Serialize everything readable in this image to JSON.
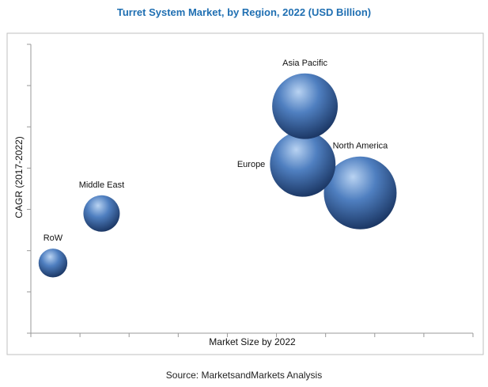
{
  "title": "Turret System Market, by Region, 2022 (USD Billion)",
  "source": "Source: MarketsandMarkets Analysis",
  "colors": {
    "bubble_light": "#b9d3f2",
    "bubble_mid": "#4f7fc0",
    "bubble_dark": "#1c3866",
    "title": "#1f6fb2",
    "axis": "#999999",
    "frame": "#bfbfbf"
  },
  "chart_data": {
    "type": "bubble",
    "xlabel": "Market Size by 2022",
    "ylabel": "CAGR (2017-2022)",
    "xlim": [
      0,
      20
    ],
    "ylim": [
      0,
      7
    ],
    "grid": false,
    "tick_labels_shown": false,
    "points": [
      {
        "label": "RoW",
        "x": 1.0,
        "y": 1.7,
        "size": 0.5
      },
      {
        "label": "Middle East",
        "x": 3.2,
        "y": 2.9,
        "size": 0.8
      },
      {
        "label": "Europe",
        "x": 12.3,
        "y": 4.1,
        "size": 2.6
      },
      {
        "label": "Asia Pacific",
        "x": 12.4,
        "y": 5.5,
        "size": 2.6
      },
      {
        "label": "North America",
        "x": 14.9,
        "y": 3.4,
        "size": 3.2
      }
    ]
  }
}
